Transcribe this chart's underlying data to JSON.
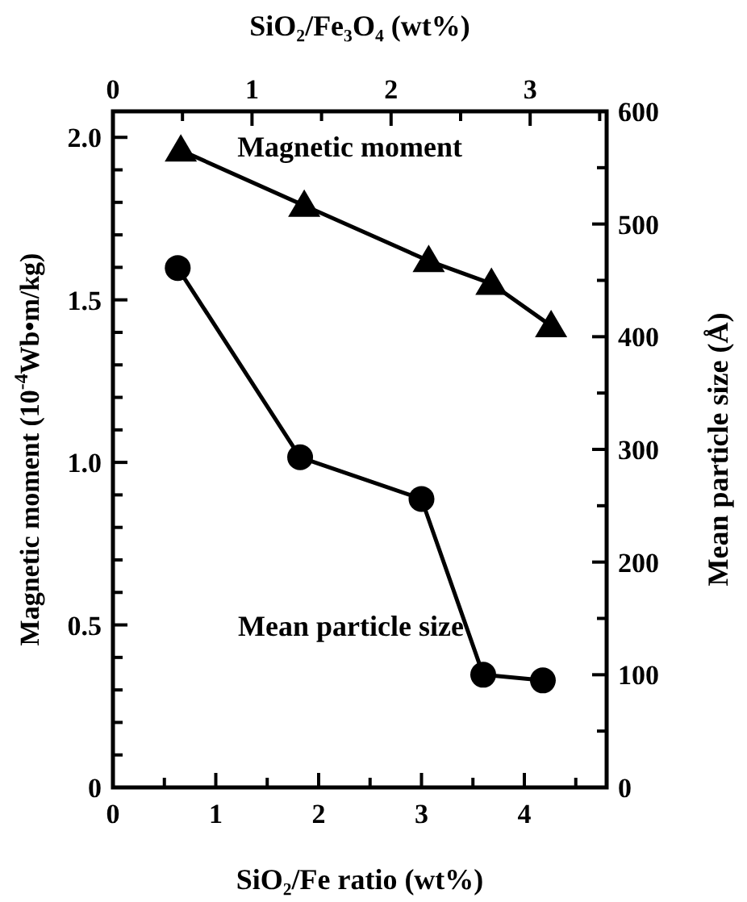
{
  "chart_data": {
    "type": "line",
    "xlabel": "SiO₂/Fe ratio (wt%)",
    "x2label": "SiO₂/Fe₃O₄ (wt%)",
    "ylabel": "Magnetic moment (10$^{-4}$Wb•m/kg)",
    "y2label": "Mean particle size (Å)",
    "xlim": [
      0,
      4.8
    ],
    "xticks": [
      0,
      {
        "value": 0.5,
        "label": null
      },
      1,
      {
        "value": 1.5,
        "label": null
      },
      2,
      {
        "value": 2.5,
        "label": null
      },
      3,
      {
        "value": 3.5,
        "label": null
      },
      4,
      {
        "value": 4.5,
        "label": null
      }
    ],
    "x2lim": [
      0,
      3.55
    ],
    "x2ticks": [
      0,
      {
        "value": 0.5,
        "label": null
      },
      1,
      {
        "value": 1.5,
        "label": null
      },
      2,
      {
        "value": 2.5,
        "label": null
      },
      3,
      {
        "value": 3.5,
        "label": null
      }
    ],
    "ylim": [
      0,
      2.08
    ],
    "yticks": [
      0,
      {
        "value": 0.1,
        "label": null
      },
      {
        "value": 0.2,
        "label": null
      },
      {
        "value": 0.3,
        "label": null
      },
      {
        "value": 0.4,
        "label": null
      },
      0.5,
      {
        "value": 0.6,
        "label": null
      },
      {
        "value": 0.7,
        "label": null
      },
      {
        "value": 0.8,
        "label": null
      },
      {
        "value": 0.9,
        "label": null
      },
      {
        "value": 1,
        "label": "1.0"
      },
      {
        "value": 1.1,
        "label": null
      },
      {
        "value": 1.2,
        "label": null
      },
      {
        "value": 1.3,
        "label": null
      },
      {
        "value": 1.4,
        "label": null
      },
      1.5,
      {
        "value": 1.6,
        "label": null
      },
      {
        "value": 1.7,
        "label": null
      },
      {
        "value": 1.8,
        "label": null
      },
      {
        "value": 1.9,
        "label": null
      },
      {
        "value": 2,
        "label": "2.0"
      }
    ],
    "y2lim": [
      0,
      600
    ],
    "y2ticks": [
      0,
      {
        "value": 50,
        "label": null
      },
      100,
      {
        "value": 150,
        "label": null
      },
      200,
      {
        "value": 250,
        "label": null
      },
      300,
      {
        "value": 350,
        "label": null
      },
      400,
      {
        "value": 450,
        "label": null
      },
      500,
      {
        "value": 550,
        "label": null
      },
      600
    ],
    "series": [
      {
        "name": "Magnetic moment",
        "color": "#000000",
        "marker": "triangle",
        "x": [
          0.66,
          1.86,
          3.07,
          3.68,
          4.26
        ],
        "values": [
          1.96,
          1.79,
          1.62,
          1.55,
          1.42
        ]
      },
      {
        "name": "Mean particle size",
        "color": "#000000",
        "marker": "circle",
        "axis": "y2",
        "x": [
          0.63,
          1.82,
          3.0,
          3.6,
          4.18
        ],
        "values": [
          461,
          293,
          256,
          100,
          95
        ]
      }
    ]
  }
}
